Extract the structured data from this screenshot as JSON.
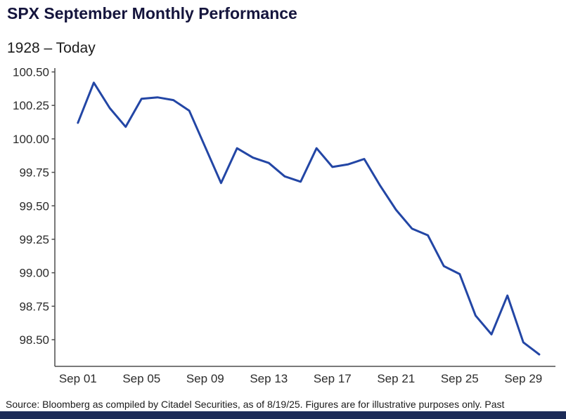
{
  "header": {
    "title": "SPX September Monthly Performance",
    "subtitle": "1928 – Today"
  },
  "footer": {
    "source": "Source: Bloomberg as compiled by Citadel Securities, as of 8/19/25. Figures are for illustrative purposes only. Past"
  },
  "colors": {
    "line": "#2346a5",
    "title_text": "#15153d",
    "axis": "#4d4d4d",
    "tick_text": "#2b2b2b",
    "brand_bar": "#1c2b57"
  },
  "chart_data": {
    "type": "line",
    "title": "SPX September Monthly Performance",
    "subtitle": "1928 – Today",
    "x": [
      "Sep 01",
      "Sep 02",
      "Sep 03",
      "Sep 04",
      "Sep 05",
      "Sep 06",
      "Sep 07",
      "Sep 08",
      "Sep 09",
      "Sep 10",
      "Sep 11",
      "Sep 12",
      "Sep 13",
      "Sep 14",
      "Sep 15",
      "Sep 16",
      "Sep 17",
      "Sep 18",
      "Sep 19",
      "Sep 20",
      "Sep 21",
      "Sep 22",
      "Sep 23",
      "Sep 24",
      "Sep 25",
      "Sep 26",
      "Sep 27",
      "Sep 28",
      "Sep 29",
      "Sep 30"
    ],
    "values": [
      100.12,
      100.42,
      100.23,
      100.09,
      100.3,
      100.31,
      100.29,
      100.21,
      99.94,
      99.67,
      99.93,
      99.86,
      99.82,
      99.72,
      99.68,
      99.93,
      99.79,
      99.81,
      99.85,
      99.65,
      99.47,
      99.33,
      99.28,
      99.05,
      98.99,
      98.68,
      98.54,
      98.83,
      98.48,
      98.39
    ],
    "y_tick_labels": [
      "100.50",
      "100.25",
      "100.00",
      "99.75",
      "99.50",
      "99.25",
      "99.00",
      "98.75",
      "98.50"
    ],
    "x_tick_labels": [
      "Sep 01",
      "Sep 05",
      "Sep 09",
      "Sep 13",
      "Sep 17",
      "Sep 21",
      "Sep 25",
      "Sep 29"
    ],
    "x_tick_indices": [
      0,
      4,
      8,
      12,
      16,
      20,
      24,
      28
    ],
    "ylim": [
      98.3,
      100.53
    ],
    "xlabel": "",
    "ylabel": "",
    "grid": false,
    "legend": null
  }
}
